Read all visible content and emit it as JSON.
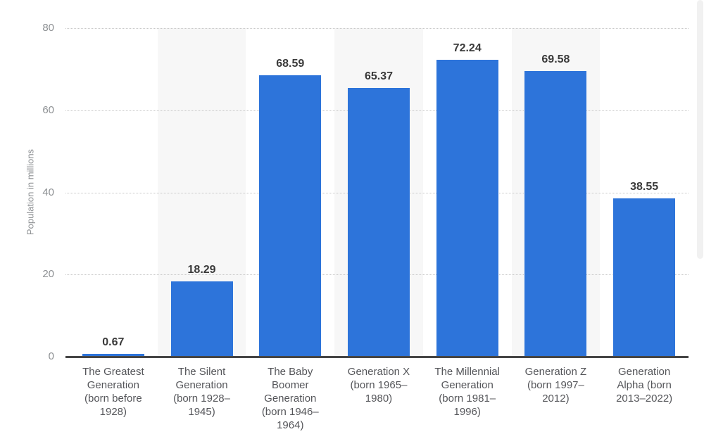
{
  "chart_data": {
    "type": "bar",
    "title": "",
    "xlabel": "",
    "ylabel": "Population in millions",
    "ylim": [
      0,
      80
    ],
    "yticks": [
      0,
      20,
      40,
      60,
      80
    ],
    "grid": "horizontal dotted gridlines at each y tick",
    "legend": "none",
    "colors": {
      "bar": "#2d74da",
      "band": "#f7f7f7",
      "axis_line": "#464646",
      "gridline": "#c8c8c8",
      "tick_label": "#8d9093",
      "value_label": "#3a3a3a",
      "category_label": "#55565a"
    },
    "categories": [
      "The Greatest Generation (born before 1928)",
      "The Silent Generation (born 1928–1945)",
      "The Baby Boomer Generation (born 1946–1964)",
      "Generation X (born 1965–1980)",
      "The Millennial Generation (born 1981–1996)",
      "Generation Z (born 1997–2012)",
      "Generation Alpha (born 2013–2022)"
    ],
    "values": [
      0.67,
      18.29,
      68.59,
      65.37,
      72.24,
      69.58,
      38.55
    ],
    "bars": [
      {
        "label": "The Greatest Generation (born before 1928)",
        "display": "The Greatest\nGeneration\n(born before\n1928)",
        "value": 0.67,
        "value_label": "0.67"
      },
      {
        "label": "The Silent Generation (born 1928–1945)",
        "display": "The Silent\nGeneration\n(born 1928–\n1945)",
        "value": 18.29,
        "value_label": "18.29"
      },
      {
        "label": "The Baby Boomer Generation (born 1946–1964)",
        "display": "The Baby\nBoomer\nGeneration\n(born 1946–\n1964)",
        "value": 68.59,
        "value_label": "68.59"
      },
      {
        "label": "Generation X (born 1965–1980)",
        "display": "Generation X\n(born 1965–\n1980)",
        "value": 65.37,
        "value_label": "65.37"
      },
      {
        "label": "The Millennial Generation (born 1981–1996)",
        "display": "The Millennial\nGeneration\n(born 1981–\n1996)",
        "value": 72.24,
        "value_label": "72.24"
      },
      {
        "label": "Generation Z (born 1997–2012)",
        "display": "Generation Z\n(born 1997–\n2012)",
        "value": 69.58,
        "value_label": "69.58"
      },
      {
        "label": "Generation Alpha (born 2013–2022)",
        "display": "Generation\nAlpha (born\n2013–2022)",
        "value": 38.55,
        "value_label": "38.55"
      }
    ]
  }
}
